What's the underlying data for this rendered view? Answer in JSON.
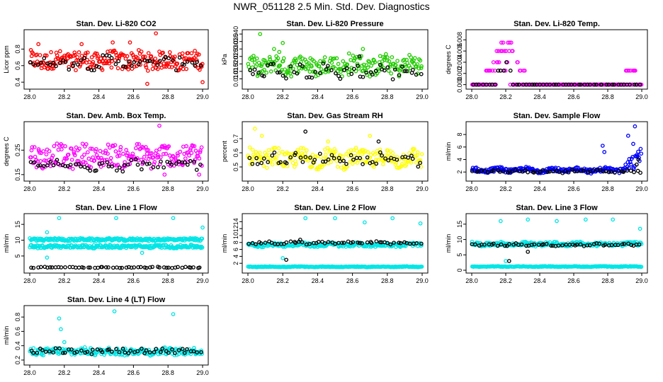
{
  "title": "NWR_051128  2.5 Min. Std. Dev. Diagnostics",
  "colors": {
    "red": "#ff0000",
    "green": "#22cc00",
    "magenta": "#ff00ff",
    "yellow": "#ffff00",
    "blue": "#0000ff",
    "cyan": "#00e5e5",
    "black": "#000000"
  },
  "chart_data": [
    {
      "type": "scatter",
      "title": "Stan. Dev. Li-820 CO2",
      "ylabel": "Licor ppm",
      "xlim": [
        28.0,
        29.0
      ],
      "ylim": [
        0.35,
        1.0
      ],
      "xticks": [
        "28.0",
        "28.2",
        "28.4",
        "28.6",
        "28.8",
        "29.0"
      ],
      "yticks": [
        "0.4",
        "0.6",
        "0.8"
      ],
      "series": [
        {
          "name": "main",
          "color": "red",
          "pattern": {
            "base": 0.66,
            "spread": 0.11,
            "amp": 0.02,
            "outliers": [
              [
                28.05,
                0.86
              ],
              [
                28.3,
                0.86
              ],
              [
                28.48,
                0.88
              ],
              [
                28.58,
                0.88
              ],
              [
                28.73,
                0.99
              ],
              [
                28.68,
                0.38
              ],
              [
                29.0,
                0.4
              ]
            ]
          }
        },
        {
          "name": "black",
          "color": "black",
          "pattern": {
            "base": 0.64,
            "spread": 0.07,
            "amp": 0.03,
            "outliers": []
          }
        }
      ]
    },
    {
      "type": "scatter",
      "title": "Stan. Dev. Li-820 Pressure",
      "ylabel": "kPa",
      "xlim": [
        28.0,
        29.0
      ],
      "ylim": [
        0.005,
        0.041
      ],
      "xticks": [
        "28.0",
        "28.2",
        "28.4",
        "28.6",
        "28.8",
        "29.0"
      ],
      "yticks": [
        "0.010",
        "0.015",
        "0.020",
        "0.025",
        "0.030",
        "0.035",
        "0.040"
      ],
      "series": [
        {
          "name": "main",
          "color": "green",
          "pattern": {
            "base": 0.019,
            "spread": 0.006,
            "amp": 0.002,
            "outliers": [
              [
                28.07,
                0.04
              ],
              [
                28.2,
                0.034
              ],
              [
                28.15,
                0.03
              ],
              [
                28.66,
                0.03
              ],
              [
                28.18,
                0.028
              ],
              [
                28.58,
                0.027
              ]
            ]
          }
        },
        {
          "name": "black",
          "color": "black",
          "pattern": {
            "base": 0.015,
            "spread": 0.004,
            "amp": 0.002,
            "outliers": [
              [
                28.64,
                0.025
              ]
            ]
          }
        }
      ]
    },
    {
      "type": "scatter",
      "title": "Stan. Dev. Li-820 Temp.",
      "ylabel": "degrees C",
      "xlim": [
        28.0,
        29.0
      ],
      "ylim": [
        -0.0003,
        0.0093
      ],
      "xticks": [
        "28.0",
        "28.2",
        "28.4",
        "28.6",
        "28.8",
        "29.0"
      ],
      "yticks": [
        "0.000",
        "0.002",
        "0.004",
        "0.006",
        "0.008"
      ],
      "series": [
        {
          "name": "main",
          "color": "magenta",
          "pattern": {
            "quantized": true,
            "levels": [
              0.0,
              0.0025,
              0.004,
              0.006,
              0.0075,
              0.0088
            ],
            "peak_center": 28.2,
            "peak_width": 0.12,
            "tail": [
              28.9,
              28.98
            ],
            "base": 0.0,
            "spread": 0,
            "amp": 0,
            "outliers": []
          }
        },
        {
          "name": "black",
          "color": "black",
          "pattern": {
            "quantized": true,
            "levels": [
              0.0,
              0.0025,
              0.004,
              0.006
            ],
            "peak_center": 28.2,
            "peak_width": 0.06,
            "tail": [],
            "base": 0.0,
            "spread": 0,
            "amp": 0,
            "outliers": []
          }
        }
      ]
    },
    {
      "type": "scatter",
      "title": "Stan. Dev. Amb. Box Temp.",
      "ylabel": "degrees C",
      "xlim": [
        28.0,
        29.0
      ],
      "ylim": [
        0.135,
        0.355
      ],
      "xticks": [
        "28.0",
        "28.2",
        "28.4",
        "28.6",
        "28.8",
        "29.0"
      ],
      "yticks": [
        "0.15",
        "0.25"
      ],
      "series": [
        {
          "name": "main",
          "color": "magenta",
          "pattern": {
            "base": 0.225,
            "spread": 0.045,
            "amp": 0.01,
            "outliers": [
              [
                28.75,
                0.35
              ],
              [
                28.78,
                0.15
              ],
              [
                28.98,
                0.15
              ]
            ]
          }
        },
        {
          "name": "black",
          "color": "black",
          "pattern": {
            "base": 0.19,
            "spread": 0.02,
            "amp": 0.01,
            "outliers": []
          }
        }
      ]
    },
    {
      "type": "scatter",
      "title": "Stan. Dev. Gas Stream RH",
      "ylabel": "percent",
      "xlim": [
        28.0,
        29.0
      ],
      "ylim": [
        0.42,
        0.8
      ],
      "xticks": [
        "28.0",
        "28.2",
        "28.4",
        "28.6",
        "28.8",
        "29.0"
      ],
      "yticks": [
        "0.5",
        "0.6",
        "0.7"
      ],
      "series": [
        {
          "name": "main",
          "color": "yellow",
          "pattern": {
            "base": 0.56,
            "spread": 0.06,
            "amp": 0.02,
            "outliers": [
              [
                28.04,
                0.77
              ],
              [
                28.08,
                0.72
              ],
              [
                28.46,
                0.68
              ],
              [
                28.7,
                0.72
              ]
            ]
          }
        },
        {
          "name": "black",
          "color": "black",
          "pattern": {
            "base": 0.55,
            "spread": 0.04,
            "amp": 0.02,
            "outliers": [
              [
                28.33,
                0.75
              ],
              [
                28.75,
                0.68
              ]
            ]
          }
        }
      ]
    },
    {
      "type": "scatter",
      "title": "Stan. Dev. Sample Flow",
      "ylabel": "ml/min",
      "xlim": [
        28.0,
        29.0
      ],
      "ylim": [
        1.0,
        9.6
      ],
      "xticks": [
        "28.0",
        "28.2",
        "28.4",
        "28.6",
        "28.8",
        "29.0"
      ],
      "yticks": [
        "2",
        "4",
        "6",
        "8"
      ],
      "series": [
        {
          "name": "main",
          "color": "blue",
          "pattern": {
            "base": 2.3,
            "spread": 0.35,
            "amp": 0.2,
            "rise": [
              28.85,
              29.0,
              3.5
            ],
            "outliers": [
              [
                28.77,
                6.2
              ],
              [
                28.78,
                5.2
              ],
              [
                28.96,
                9.3
              ],
              [
                28.92,
                7.8
              ],
              [
                28.95,
                6.5
              ]
            ]
          }
        },
        {
          "name": "black",
          "color": "black",
          "pattern": {
            "base": 2.1,
            "spread": 0.2,
            "amp": 0.1,
            "outliers": [
              [
                28.98,
                4.0
              ],
              [
                28.97,
                3.2
              ]
            ]
          }
        }
      ]
    },
    {
      "type": "scatter",
      "title": "Stan. Dev. Line 1 Flow",
      "ylabel": "ml/min",
      "xlim": [
        28.0,
        29.0
      ],
      "ylim": [
        0.5,
        17.5
      ],
      "xticks": [
        "28.0",
        "28.2",
        "28.4",
        "28.6",
        "28.8",
        "29.0"
      ],
      "yticks": [
        "5",
        "10",
        "15"
      ],
      "series": [
        {
          "name": "upper",
          "color": "cyan",
          "pattern": {
            "base": 10.2,
            "spread": 0.4,
            "amp": 0.1,
            "outliers": [
              [
                28.17,
                17.0
              ],
              [
                28.5,
                17.0
              ],
              [
                28.83,
                17.0
              ],
              [
                29.0,
                14.0
              ],
              [
                28.1,
                12.5
              ]
            ]
          }
        },
        {
          "name": "middle",
          "color": "cyan",
          "pattern": {
            "base": 8.0,
            "spread": 0.5,
            "amp": 0.1,
            "outliers": [
              [
                28.1,
                4.5
              ],
              [
                28.65,
                6.0
              ]
            ]
          }
        },
        {
          "name": "black",
          "color": "black",
          "pattern": {
            "base": 1.4,
            "spread": 0.15,
            "amp": 0.05,
            "outliers": []
          }
        }
      ]
    },
    {
      "type": "scatter",
      "title": "Stan. Dev. Line 2 Flow",
      "ylabel": "ml/min",
      "xlim": [
        28.0,
        29.0
      ],
      "ylim": [
        0.0,
        15.5
      ],
      "xticks": [
        "28.0",
        "28.2",
        "28.4",
        "28.6",
        "28.8",
        "29.0"
      ],
      "yticks": [
        "2",
        "4",
        "6",
        "8",
        "10",
        "12",
        "14"
      ],
      "series": [
        {
          "name": "cyan-band",
          "color": "cyan",
          "pattern": {
            "base": 7.3,
            "spread": 0.5,
            "amp": 0.2,
            "outliers": [
              [
                28.33,
                15.0
              ],
              [
                28.5,
                15.0
              ],
              [
                28.83,
                15.0
              ],
              [
                28.67,
                13.8
              ],
              [
                28.99,
                13.5
              ],
              [
                28.2,
                3.5
              ]
            ]
          }
        },
        {
          "name": "cyan-low",
          "color": "cyan",
          "pattern": {
            "base": 1.0,
            "spread": 0.1,
            "amp": 0.05,
            "outliers": []
          }
        },
        {
          "name": "black",
          "color": "black",
          "pattern": {
            "base": 7.9,
            "spread": 0.3,
            "amp": 0.2,
            "outliers": [
              [
                28.22,
                3.0
              ],
              [
                28.3,
                8.8
              ]
            ]
          }
        }
      ]
    },
    {
      "type": "scatter",
      "title": "Stan. Dev. Line 3 Flow",
      "ylabel": "ml/min",
      "xlim": [
        28.0,
        29.0
      ],
      "ylim": [
        0.0,
        17.5
      ],
      "xticks": [
        "28.0",
        "28.2",
        "28.4",
        "28.6",
        "28.8",
        "29.0"
      ],
      "yticks": [
        "0",
        "5",
        "10",
        "15"
      ],
      "series": [
        {
          "name": "cyan-band",
          "color": "cyan",
          "pattern": {
            "base": 8.5,
            "spread": 0.6,
            "amp": 0.2,
            "outliers": [
              [
                28.17,
                16.0
              ],
              [
                28.33,
                16.5
              ],
              [
                28.5,
                16.0
              ],
              [
                28.67,
                16.5
              ],
              [
                28.83,
                16.5
              ],
              [
                28.99,
                13.5
              ],
              [
                28.2,
                3.0
              ]
            ]
          }
        },
        {
          "name": "cyan-low",
          "color": "cyan",
          "pattern": {
            "base": 1.2,
            "spread": 0.1,
            "amp": 0.05,
            "outliers": []
          }
        },
        {
          "name": "black",
          "color": "black",
          "pattern": {
            "base": 8.3,
            "spread": 0.3,
            "amp": 0.2,
            "outliers": [
              [
                28.22,
                3.0
              ],
              [
                28.33,
                6.0
              ]
            ]
          }
        }
      ]
    },
    {
      "type": "scatter",
      "title": "Stan. Dev. Line 4 (LT) Flow",
      "ylabel": "ml/min",
      "xlim": [
        28.0,
        29.0
      ],
      "ylim": [
        0.17,
        0.92
      ],
      "xticks": [
        "28.0",
        "28.2",
        "28.4",
        "28.6",
        "28.8",
        "29.0"
      ],
      "yticks": [
        "0.2",
        "0.4",
        "0.6",
        "0.8"
      ],
      "series": [
        {
          "name": "main",
          "color": "cyan",
          "pattern": {
            "base": 0.32,
            "spread": 0.05,
            "amp": 0.01,
            "outliers": [
              [
                28.49,
                0.88
              ],
              [
                28.83,
                0.84
              ],
              [
                28.17,
                0.78
              ],
              [
                28.18,
                0.63
              ],
              [
                28.2,
                0.45
              ]
            ]
          }
        },
        {
          "name": "black",
          "color": "black",
          "pattern": {
            "base": 0.33,
            "spread": 0.04,
            "amp": 0.01,
            "outliers": []
          }
        }
      ]
    }
  ]
}
